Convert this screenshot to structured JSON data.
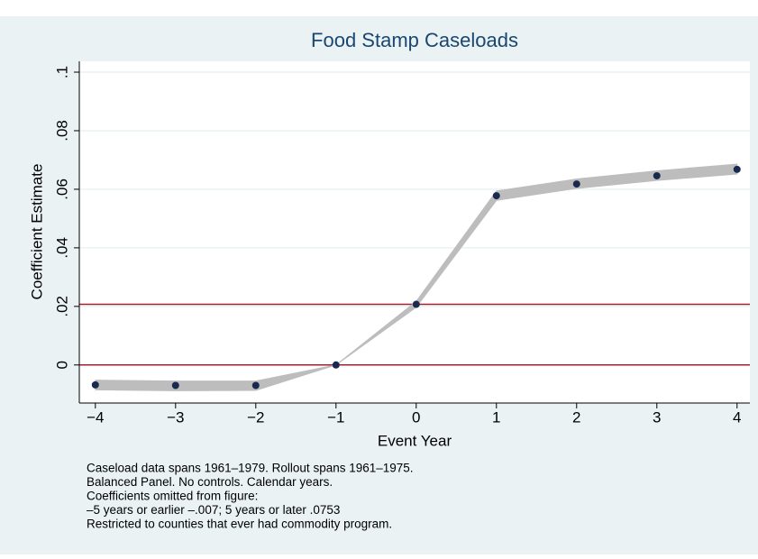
{
  "chart_data": {
    "type": "line",
    "title": "Food Stamp Caseloads",
    "x_label": "Event Year",
    "y_label": "Coefficient Estimate",
    "x": [
      -4,
      -3,
      -2,
      -1,
      0,
      1,
      2,
      3,
      4
    ],
    "series": [
      {
        "name": "Coefficient",
        "color": "#1a2a4f",
        "values": [
          -0.0068,
          -0.007,
          -0.007,
          0,
          0.0207,
          0.0578,
          0.0618,
          0.0646,
          0.0668
        ]
      },
      {
        "name": "Lower bound",
        "color": "#bdbdbd",
        "values": [
          -0.0085,
          -0.0088,
          -0.0087,
          0,
          0.0197,
          0.0562,
          0.0603,
          0.063,
          0.0652
        ]
      },
      {
        "name": "Upper bound",
        "color": "#bdbdbd",
        "values": [
          -0.0052,
          -0.0055,
          -0.0055,
          0,
          0.0217,
          0.0594,
          0.0635,
          0.0663,
          0.0686
        ]
      }
    ],
    "reference_lines": [
      0,
      0.0207
    ],
    "reference_color": "#9b2335",
    "xlim": [
      -4.2,
      4.16
    ],
    "ylim": [
      -0.013,
      0.1037
    ],
    "xticks": [
      {
        "value": -4,
        "label": "−4"
      },
      {
        "value": -3,
        "label": "−3"
      },
      {
        "value": -2,
        "label": "−2"
      },
      {
        "value": -1,
        "label": "−1"
      },
      0,
      1,
      2,
      3,
      4
    ],
    "yticks": [
      0,
      {
        "value": 0.02,
        "label": ".02"
      },
      {
        "value": 0.04,
        "label": ".04"
      },
      {
        "value": 0.06,
        "label": ".06"
      },
      {
        "value": 0.08,
        "label": ".08"
      },
      {
        "value": 0.1,
        "label": ".1"
      }
    ],
    "grid": true,
    "notes": [
      "Caseload data spans 1961–1979. Rollout spans 1961–1975.",
      "Balanced Panel. No controls. Calendar years.",
      "Coefficients omitted from figure:",
      "–5 years or earlier –.007; 5 years or later .0753",
      "Restricted to counties that ever had commodity program."
    ]
  }
}
